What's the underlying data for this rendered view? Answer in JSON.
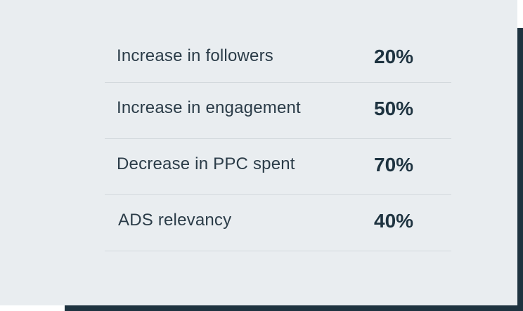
{
  "stats": [
    {
      "label": "Increase in followers",
      "value": "20%"
    },
    {
      "label": "Increase in engagement",
      "value": "50%"
    },
    {
      "label": "Decrease in PPC spent",
      "value": "70%"
    },
    {
      "label": "ADS relevancy",
      "value": "40%"
    }
  ],
  "colors": {
    "card_background": "#e9edf0",
    "accent_dark": "#1e3340",
    "text": "#2b3c48",
    "divider": "#d3d9dd"
  }
}
